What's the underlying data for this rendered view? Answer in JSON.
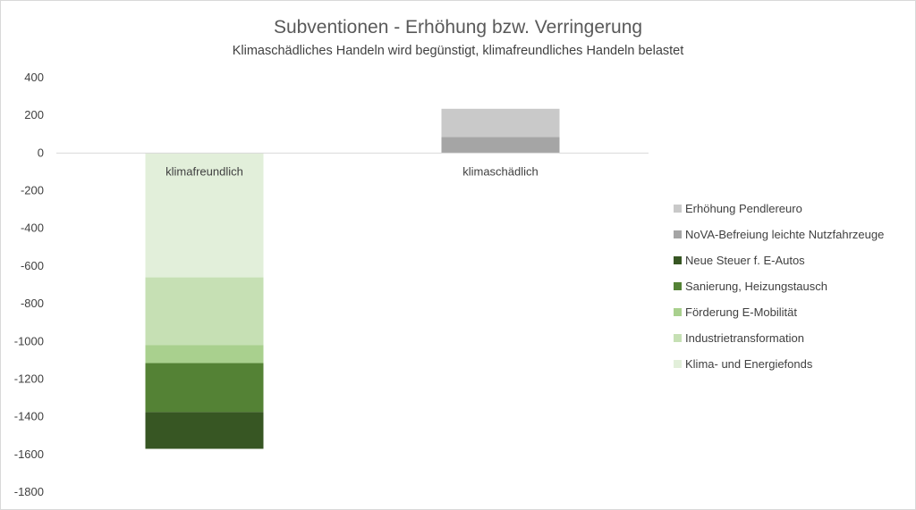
{
  "chart_data": {
    "type": "bar",
    "stacked": true,
    "title": "Subventionen - Erhöhung bzw. Verringerung",
    "subtitle": "Klimaschädliches Handeln wird begünstigt, klimafreundliches Handeln belastet",
    "categories": [
      "klimafreundlich",
      "klimaschädlich"
    ],
    "ylim": [
      -1800,
      400
    ],
    "yticks": [
      400,
      200,
      0,
      -200,
      -400,
      -600,
      -800,
      -1000,
      -1200,
      -1400,
      -1600,
      -1800
    ],
    "legend_position": "right",
    "gridlines": false,
    "series": [
      {
        "name": "Klima- und Energiefonds",
        "color": "#e2efda",
        "values": [
          -660,
          0
        ]
      },
      {
        "name": "Industrietransformation",
        "color": "#c6e0b4",
        "values": [
          -360,
          0
        ]
      },
      {
        "name": "Förderung E-Mobilität",
        "color": "#a9d08e",
        "values": [
          -95,
          0
        ]
      },
      {
        "name": "Sanierung, Heizungstausch",
        "color": "#548235",
        "values": [
          -260,
          0
        ]
      },
      {
        "name": "Neue Steuer f. E-Autos",
        "color": "#375623",
        "values": [
          -195,
          0
        ]
      },
      {
        "name": "NoVA-Befreiung leichte Nutzfahrzeuge",
        "color": "#a5a5a5",
        "values": [
          0,
          85
        ]
      },
      {
        "name": "Erhöhung Pendlereuro",
        "color": "#c9c9c9",
        "values": [
          0,
          150
        ]
      }
    ]
  }
}
